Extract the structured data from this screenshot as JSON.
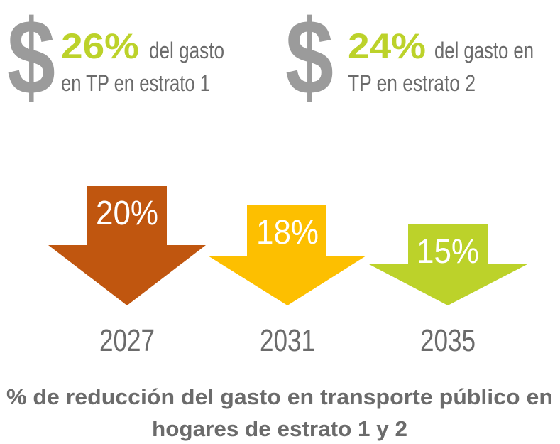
{
  "stats": [
    {
      "value": "26%",
      "line1": "del gasto",
      "line2": "en TP en estrato 1"
    },
    {
      "value": "24%",
      "line1": "del gasto en",
      "line2": "TP en estrato 2"
    }
  ],
  "arrows": [
    {
      "label": "20%",
      "year": "2027"
    },
    {
      "label": "18%",
      "year": "2031"
    },
    {
      "label": "15%",
      "year": "2035"
    }
  ],
  "caption": {
    "line1": "% de reducción del gasto en transporte público en",
    "line2": "hogares de estrato 1 y 2"
  }
}
